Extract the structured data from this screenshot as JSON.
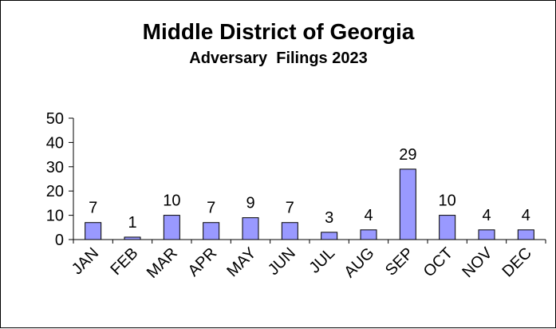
{
  "chart_data": {
    "type": "bar",
    "title": "Middle District of Georgia",
    "subtitle": "Adversary  Filings 2023",
    "categories": [
      "JAN",
      "FEB",
      "MAR",
      "APR",
      "MAY",
      "JUN",
      "JUL",
      "AUG",
      "SEP",
      "OCT",
      "NOV",
      "DEC"
    ],
    "values": [
      7,
      1,
      10,
      7,
      9,
      7,
      3,
      4,
      29,
      10,
      4,
      4
    ],
    "data_labels": [
      "7",
      "1",
      "10",
      "7",
      "9",
      "7",
      "3",
      "4",
      "29",
      "10",
      "4",
      "4"
    ],
    "ylim": [
      0,
      50
    ],
    "yticks": [
      0,
      10,
      20,
      30,
      40,
      50
    ],
    "ytick_labels": [
      "0",
      "10",
      "20",
      "30",
      "40",
      "50"
    ],
    "xlabel": "",
    "ylabel": "",
    "grid": false,
    "legend": "none",
    "bar_color": "#9999ff",
    "bar_outline": "#000000"
  }
}
